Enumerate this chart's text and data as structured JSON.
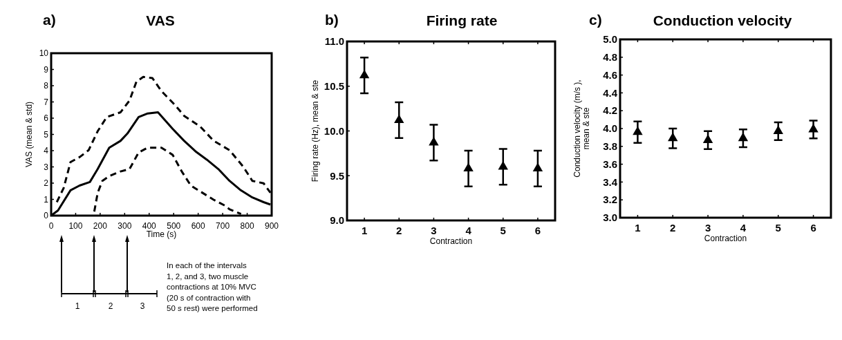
{
  "chart_data": [
    {
      "type": "line",
      "title": "VAS",
      "xlabel": "Time (s)",
      "ylabel": "VAS (mean & std)",
      "xlim": [
        0,
        900
      ],
      "xticks": [
        0,
        100,
        200,
        300,
        400,
        500,
        600,
        700,
        800,
        900
      ],
      "ylim": [
        0,
        10
      ],
      "yticks": [
        0,
        1,
        2,
        3,
        4,
        5,
        6,
        7,
        8,
        9,
        10
      ],
      "grid": false,
      "annotations": [
        "a)",
        "1",
        "2",
        "3",
        "In each of the intervals 1, 2, and 3, two muscle contractions at 10% MVC (20 s of contraction with 50 s rest) were performed"
      ],
      "series": [
        {
          "color": "#000000",
          "line_style": "solid",
          "x": [
            0,
            28,
            79,
            116,
            158,
            190,
            237,
            283,
            311,
            357,
            394,
            436,
            496,
            543,
            589,
            635,
            682,
            728,
            774,
            821,
            867,
            895
          ],
          "values": [
            0,
            0.32,
            1.56,
            1.85,
            2.07,
            2.87,
            4.18,
            4.6,
            5.05,
            6.07,
            6.29,
            6.36,
            5.34,
            4.6,
            3.96,
            3.45,
            2.87,
            2.14,
            1.56,
            1.12,
            0.83,
            0.68
          ]
        },
        {
          "color": "#000000",
          "line_style": "dashed",
          "x": [
            23,
            51,
            79,
            116,
            153,
            190,
            227,
            283,
            320,
            348,
            376,
            413,
            450,
            506,
            543,
            608,
            663,
            728,
            784,
            821,
            867,
            895
          ],
          "values": [
            0.83,
            1.7,
            3.3,
            3.6,
            4.03,
            5.2,
            6.07,
            6.36,
            7.09,
            8.25,
            8.54,
            8.47,
            7.67,
            6.8,
            6.14,
            5.49,
            4.61,
            4.03,
            3.01,
            2.14,
            1.99,
            1.41
          ]
        },
        {
          "color": "#000000",
          "line_style": "dashed",
          "x": [
            176,
            190,
            209,
            237,
            283,
            320,
            357,
            394,
            450,
            496,
            533,
            570,
            617,
            663,
            710,
            728,
            775
          ],
          "values": [
            0.25,
            1.41,
            2.14,
            2.43,
            2.72,
            2.87,
            3.89,
            4.18,
            4.18,
            3.74,
            2.72,
            1.85,
            1.41,
            0.98,
            0.61,
            0.39,
            0.1
          ]
        }
      ]
    },
    {
      "type": "scatter",
      "title": "Firing rate",
      "xlabel": "Contraction",
      "ylabel": "Firing rate (Hz), mean & ste",
      "categories": [
        "1",
        "2",
        "3",
        "4",
        "5",
        "6"
      ],
      "ylim": [
        9,
        11
      ],
      "yticks": [
        {
          "value": 9,
          "label": "9.0"
        },
        9.5,
        {
          "value": 10,
          "label": "10.0"
        },
        10.5,
        {
          "value": 11,
          "label": "11.0"
        }
      ],
      "marker": "triangle",
      "annotations": [
        "b)"
      ],
      "series": [
        {
          "color": "#000000",
          "values": [
            10.62,
            10.12,
            9.87,
            9.58,
            9.6,
            9.58
          ],
          "errors": [
            0.2,
            0.2,
            0.2,
            0.2,
            0.2,
            0.2
          ]
        }
      ]
    },
    {
      "type": "scatter",
      "title": "Conduction velocity",
      "xlabel": "Contraction",
      "ylabel": "Conduction velocity (m/s ),\nmean & ste",
      "categories": [
        "1",
        "2",
        "3",
        "4",
        "5",
        "6"
      ],
      "ylim": [
        3,
        5
      ],
      "yticks": [
        {
          "value": 3,
          "label": "3.0"
        },
        3.2,
        3.4,
        3.6,
        3.8,
        {
          "value": 4,
          "label": "4.0"
        },
        4.2,
        4.4,
        4.6,
        4.8,
        {
          "value": 5,
          "label": "5.0"
        }
      ],
      "marker": "triangle",
      "annotations": [
        "c)"
      ],
      "series": [
        {
          "color": "#000000",
          "values": [
            3.96,
            3.89,
            3.87,
            3.89,
            3.97,
            3.99
          ],
          "errors": [
            0.12,
            0.11,
            0.1,
            0.1,
            0.1,
            0.1
          ]
        }
      ]
    }
  ]
}
